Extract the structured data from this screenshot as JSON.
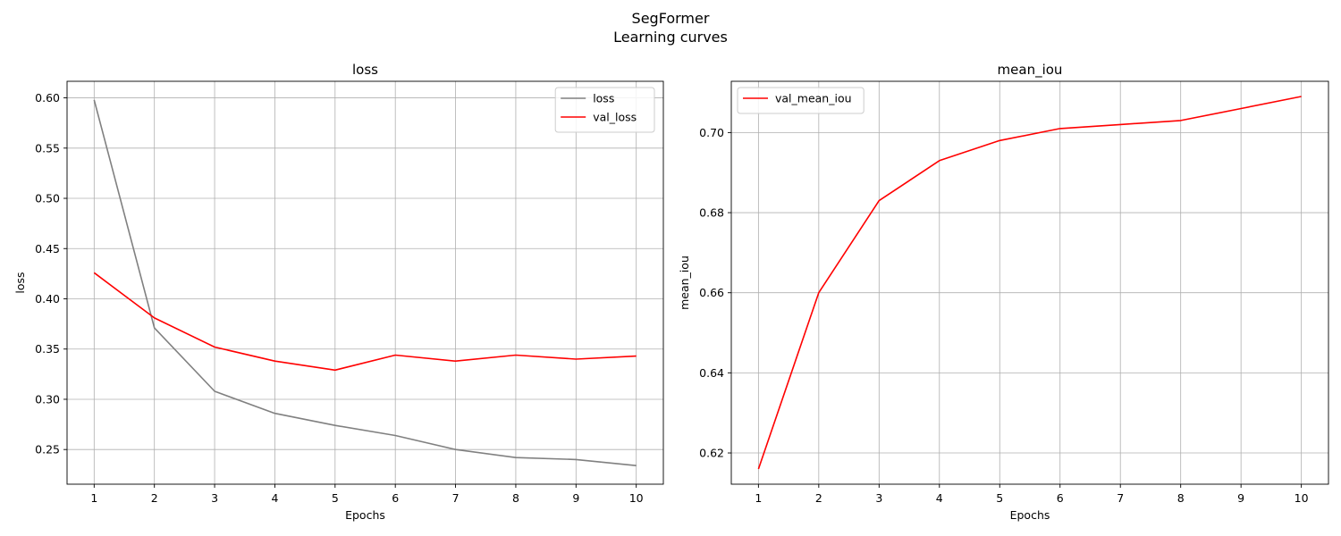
{
  "figure": {
    "title_line1": "SegFormer",
    "title_line2": "Learning curves"
  },
  "chart_data": [
    {
      "type": "line",
      "title": "loss",
      "xlabel": "Epochs",
      "ylabel": "loss",
      "x": [
        1,
        2,
        3,
        4,
        5,
        6,
        7,
        8,
        9,
        10
      ],
      "xlim": [
        0.55,
        10.45
      ],
      "ylim": [
        0.2155,
        0.6165
      ],
      "yticks": [
        0.25,
        0.3,
        0.35,
        0.4,
        0.45,
        0.5,
        0.55,
        0.6
      ],
      "ytick_labels": [
        "0.25",
        "0.30",
        "0.35",
        "0.40",
        "0.45",
        "0.50",
        "0.55",
        "0.60"
      ],
      "grid": true,
      "legend_position": "top-right",
      "series": [
        {
          "name": "loss",
          "color": "#808080",
          "values": [
            0.598,
            0.371,
            0.308,
            0.286,
            0.274,
            0.264,
            0.25,
            0.242,
            0.24,
            0.234
          ]
        },
        {
          "name": "val_loss",
          "color": "#ff0000",
          "values": [
            0.426,
            0.381,
            0.352,
            0.338,
            0.329,
            0.344,
            0.338,
            0.344,
            0.34,
            0.343
          ]
        }
      ]
    },
    {
      "type": "line",
      "title": "mean_iou",
      "xlabel": "Epochs",
      "ylabel": "mean_iou",
      "x": [
        1,
        2,
        3,
        4,
        5,
        6,
        7,
        8,
        9,
        10
      ],
      "xlim": [
        0.55,
        10.45
      ],
      "ylim": [
        0.6122,
        0.7128
      ],
      "yticks": [
        0.62,
        0.64,
        0.66,
        0.68,
        0.7
      ],
      "ytick_labels": [
        "0.62",
        "0.64",
        "0.66",
        "0.68",
        "0.70"
      ],
      "grid": true,
      "legend_position": "top-left",
      "series": [
        {
          "name": "val_mean_iou",
          "color": "#ff0000",
          "values": [
            0.616,
            0.66,
            0.683,
            0.693,
            0.698,
            0.701,
            0.702,
            0.703,
            0.706,
            0.709
          ]
        }
      ]
    }
  ]
}
